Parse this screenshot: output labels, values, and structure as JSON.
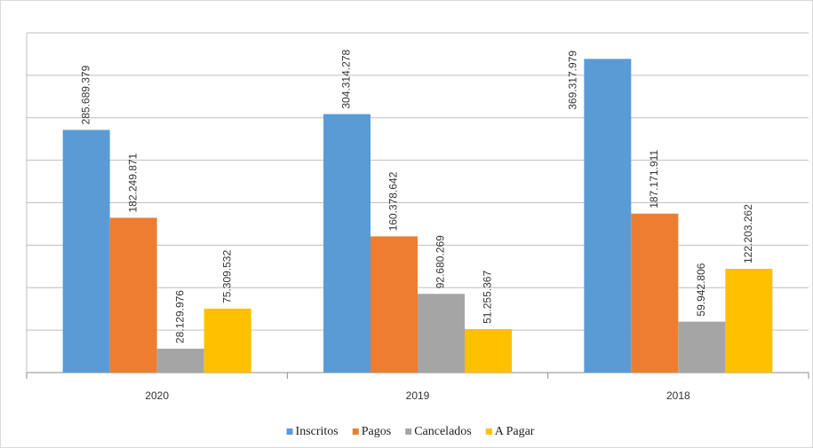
{
  "chart_data": {
    "type": "bar",
    "categories": [
      "2020",
      "2019",
      "2018"
    ],
    "series": [
      {
        "name": "Inscritos",
        "color": "#5b9bd5",
        "values": [
          285689379,
          304314278,
          369317979
        ],
        "value_labels": [
          "285.689.379",
          "304.314.278",
          "369.317.979"
        ]
      },
      {
        "name": "Pagos",
        "color": "#ed7d31",
        "values": [
          182249871,
          160378642,
          187171911
        ],
        "value_labels": [
          "182.249.871",
          "160.378.642",
          "187.171.911"
        ]
      },
      {
        "name": "Cancelados",
        "color": "#a5a5a5",
        "values": [
          28129976,
          92680269,
          59942806
        ],
        "value_labels": [
          "28.129.976",
          "92.680.269",
          "59.942.806"
        ]
      },
      {
        "name": "A Pagar",
        "color": "#ffc000",
        "values": [
          75309532,
          51255367,
          122203262
        ],
        "value_labels": [
          "75.309.532",
          "51.255.367",
          "122.203.262"
        ]
      }
    ],
    "ylim": [
      0,
      400000000
    ],
    "yticks": [
      0,
      50000000,
      100000000,
      150000000,
      200000000,
      250000000,
      300000000,
      350000000,
      400000000
    ],
    "grid": true,
    "legend": "bottom"
  }
}
